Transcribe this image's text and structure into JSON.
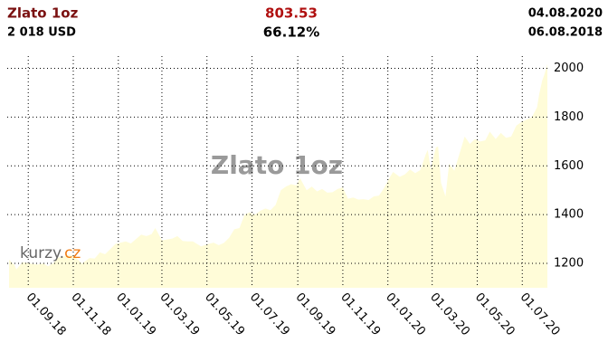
{
  "chart_data": {
    "type": "line",
    "title": "Zlato 1oz",
    "price": "2 018 USD",
    "change": "803.53",
    "change_pct": "66.12%",
    "date_end": "04.08.2020",
    "date_start": "06.08.2018",
    "watermark": "Zlato 1oz",
    "logo": [
      "kurzy.",
      "cz"
    ],
    "x": [
      "2018-08-06",
      "2018-08-13",
      "2018-08-16",
      "2018-08-24",
      "2018-08-31",
      "2018-09-07",
      "2018-09-14",
      "2018-09-21",
      "2018-09-28",
      "2018-10-05",
      "2018-10-12",
      "2018-10-19",
      "2018-10-26",
      "2018-11-02",
      "2018-11-09",
      "2018-11-13",
      "2018-11-23",
      "2018-11-30",
      "2018-12-07",
      "2018-12-14",
      "2018-12-21",
      "2018-12-28",
      "2019-01-04",
      "2019-01-11",
      "2019-01-18",
      "2019-01-25",
      "2019-02-01",
      "2019-02-08",
      "2019-02-15",
      "2019-02-20",
      "2019-03-01",
      "2019-03-08",
      "2019-03-15",
      "2019-03-22",
      "2019-03-29",
      "2019-04-05",
      "2019-04-12",
      "2019-04-23",
      "2019-05-03",
      "2019-05-10",
      "2019-05-17",
      "2019-05-24",
      "2019-05-31",
      "2019-06-07",
      "2019-06-14",
      "2019-06-21",
      "2019-06-28",
      "2019-07-05",
      "2019-07-12",
      "2019-07-19",
      "2019-07-26",
      "2019-08-02",
      "2019-08-09",
      "2019-08-16",
      "2019-08-23",
      "2019-08-30",
      "2019-09-04",
      "2019-09-13",
      "2019-09-20",
      "2019-09-27",
      "2019-10-04",
      "2019-10-11",
      "2019-10-18",
      "2019-10-25",
      "2019-11-01",
      "2019-11-08",
      "2019-11-15",
      "2019-11-22",
      "2019-11-29",
      "2019-12-06",
      "2019-12-13",
      "2019-12-20",
      "2019-12-27",
      "2020-01-03",
      "2020-01-08",
      "2020-01-17",
      "2020-01-24",
      "2020-01-31",
      "2020-02-07",
      "2020-02-14",
      "2020-02-21",
      "2020-02-24",
      "2020-02-28",
      "2020-03-06",
      "2020-03-09",
      "2020-03-13",
      "2020-03-19",
      "2020-03-24",
      "2020-03-31",
      "2020-04-07",
      "2020-04-14",
      "2020-04-21",
      "2020-04-28",
      "2020-05-05",
      "2020-05-12",
      "2020-05-18",
      "2020-05-26",
      "2020-06-02",
      "2020-06-09",
      "2020-06-16",
      "2020-06-23",
      "2020-06-30",
      "2020-07-07",
      "2020-07-14",
      "2020-07-21",
      "2020-07-24",
      "2020-07-28",
      "2020-07-31",
      "2020-08-04"
    ],
    "series": [
      {
        "color": "#990000",
        "values": [
          1215,
          1195,
          1175,
          1205,
          1202,
          1198,
          1195,
          1200,
          1188,
          1202,
          1225,
          1228,
          1235,
          1232,
          1210,
          1200,
          1222,
          1220,
          1245,
          1238,
          1258,
          1280,
          1285,
          1290,
          1282,
          1300,
          1318,
          1312,
          1320,
          1345,
          1295,
          1298,
          1302,
          1312,
          1292,
          1290,
          1290,
          1270,
          1280,
          1285,
          1275,
          1284,
          1305,
          1340,
          1345,
          1400,
          1410,
          1400,
          1415,
          1425,
          1418,
          1440,
          1500,
          1515,
          1525,
          1520,
          1550,
          1500,
          1515,
          1495,
          1505,
          1490,
          1492,
          1505,
          1512,
          1465,
          1470,
          1462,
          1463,
          1460,
          1475,
          1478,
          1510,
          1550,
          1575,
          1555,
          1565,
          1585,
          1570,
          1583,
          1645,
          1665,
          1585,
          1675,
          1680,
          1530,
          1475,
          1610,
          1580,
          1650,
          1720,
          1690,
          1710,
          1700,
          1705,
          1740,
          1710,
          1735,
          1715,
          1720,
          1765,
          1780,
          1790,
          1800,
          1840,
          1895,
          1950,
          1975,
          2018
        ]
      }
    ],
    "xlim": [
      "2018-08-06",
      "2020-08-04"
    ],
    "xticks": [
      {
        "value": "2018-09-01",
        "label": "01.09.18"
      },
      {
        "value": "2018-11-01",
        "label": "01.11.18"
      },
      {
        "value": "2019-01-01",
        "label": "01.01.19"
      },
      {
        "value": "2019-03-01",
        "label": "01.03.19"
      },
      {
        "value": "2019-05-01",
        "label": "01.05.19"
      },
      {
        "value": "2019-07-01",
        "label": "01.07.19"
      },
      {
        "value": "2019-09-01",
        "label": "01.09.19"
      },
      {
        "value": "2019-11-01",
        "label": "01.11.19"
      },
      {
        "value": "2020-01-01",
        "label": "01.01.20"
      },
      {
        "value": "2020-03-01",
        "label": "01.03.20"
      },
      {
        "value": "2020-05-01",
        "label": "01.05.20"
      },
      {
        "value": "2020-07-01",
        "label": "01.07.20"
      }
    ],
    "ylim": [
      1100,
      2050
    ],
    "yticks": [
      1200,
      1400,
      1600,
      1800,
      2000
    ],
    "grid": true,
    "fill": "#fffcd8"
  }
}
